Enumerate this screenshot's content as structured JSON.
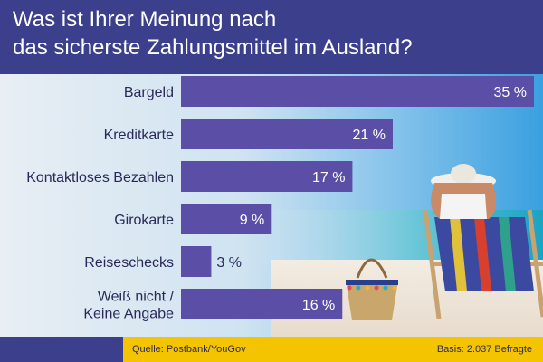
{
  "title_line1": "Was ist Ihrer Meinung nach",
  "title_line2": "das sicherste Zahlungsmittel im Ausland?",
  "footer": {
    "source": "Quelle: Postbank/YouGov",
    "basis": "Basis: 2.037 Befragte"
  },
  "colors": {
    "header": "#3b3f8c",
    "bar": "#5a4ea6",
    "footer_accent": "#f5c400"
  },
  "chart_data": {
    "type": "bar",
    "orientation": "horizontal",
    "title": "Was ist Ihrer Meinung nach das sicherste Zahlungsmittel im Ausland?",
    "categories": [
      [
        "Bargeld"
      ],
      [
        "Kreditkarte"
      ],
      [
        "Kontaktloses Bezahlen"
      ],
      [
        "Girokarte"
      ],
      [
        "Reiseschecks"
      ],
      [
        "Weiß nicht /",
        "Keine Angabe"
      ]
    ],
    "values": [
      35,
      21,
      17,
      9,
      3,
      16
    ],
    "value_labels": [
      "35 %",
      "21 %",
      "17 %",
      "9 %",
      "3 %",
      "16 %"
    ],
    "unit": "%",
    "xlim": [
      0,
      35
    ]
  }
}
